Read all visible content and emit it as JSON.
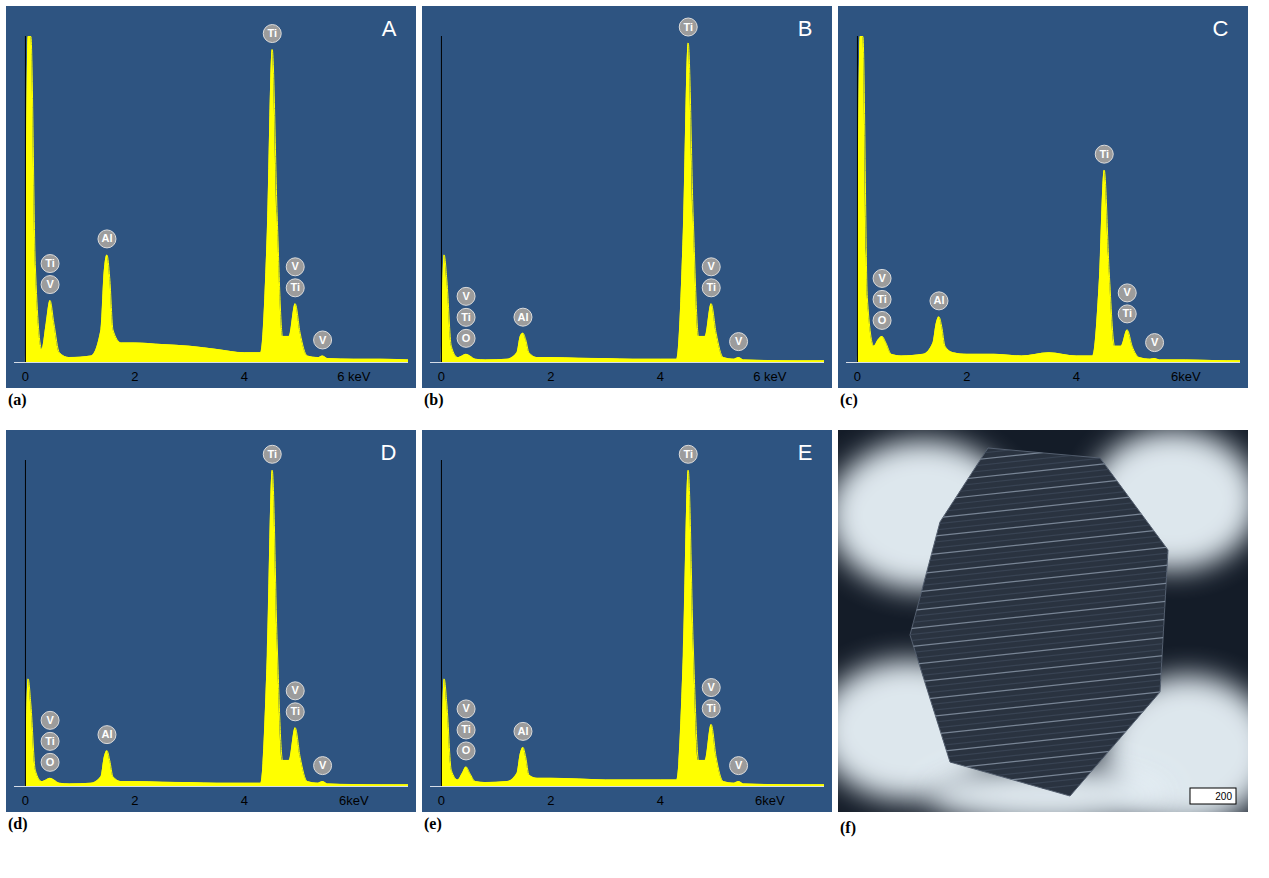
{
  "chart_data": [
    {
      "type": "area",
      "panel_label": "A",
      "caption": "(a)",
      "color": "#ffff00",
      "x": [
        0,
        0.05,
        0.1,
        0.18,
        0.3,
        0.38,
        0.45,
        0.52,
        0.62,
        0.8,
        1.2,
        1.38,
        1.44,
        1.49,
        1.54,
        1.6,
        1.75,
        2,
        2.5,
        3,
        3.5,
        4,
        4.3,
        4.42,
        4.51,
        4.6,
        4.7,
        4.82,
        4.93,
        5.02,
        5.15,
        5.35,
        5.43,
        5.52,
        6,
        6.5,
        7
      ],
      "values": [
        0,
        100,
        100,
        30,
        4,
        12,
        19,
        12,
        3,
        1.5,
        2,
        10,
        28,
        33,
        26,
        10,
        6,
        6,
        5.5,
        5,
        4,
        3,
        3,
        40,
        96,
        45,
        8,
        8,
        18,
        9,
        2,
        1.5,
        2,
        1.2,
        1,
        1,
        0.8
      ],
      "xlim": [
        -0.2,
        7
      ],
      "ylim": [
        0,
        100
      ],
      "xticks": [
        0,
        2,
        4,
        {
          "value": 6,
          "label": "6 keV"
        }
      ],
      "tick_labels": "x",
      "peak_labels": [
        {
          "x": 0.45,
          "labels": [
            "Ti",
            "V"
          ]
        },
        {
          "x": 1.49,
          "labels": [
            "Al"
          ]
        },
        {
          "x": 4.51,
          "labels": [
            "Ti"
          ]
        },
        {
          "x": 4.93,
          "labels": [
            "V",
            "Ti"
          ]
        },
        {
          "x": 5.43,
          "labels": [
            "V"
          ]
        }
      ]
    },
    {
      "type": "area",
      "panel_label": "B",
      "caption": "(b)",
      "color": "#ffff00",
      "x": [
        0,
        0.05,
        0.1,
        0.18,
        0.3,
        0.38,
        0.45,
        0.52,
        0.62,
        0.8,
        1.2,
        1.38,
        1.44,
        1.49,
        1.54,
        1.6,
        1.75,
        2,
        2.5,
        3,
        3.5,
        4,
        4.3,
        4.42,
        4.51,
        4.6,
        4.7,
        4.82,
        4.93,
        5.02,
        5.15,
        5.35,
        5.43,
        5.52,
        6,
        6.5,
        7
      ],
      "values": [
        0,
        33,
        25,
        5,
        1.5,
        2,
        2.5,
        2,
        1,
        0.8,
        1,
        3,
        8,
        9,
        7,
        3,
        1.5,
        1.5,
        1.3,
        1.2,
        1,
        1,
        1,
        40,
        98,
        45,
        8,
        8,
        18,
        9,
        1.5,
        1,
        1.5,
        0.8,
        0.6,
        0.5,
        0.5
      ],
      "xlim": [
        -0.2,
        7
      ],
      "ylim": [
        0,
        100
      ],
      "xticks": [
        0,
        2,
        4,
        {
          "value": 6,
          "label": "6 keV"
        }
      ],
      "tick_labels": "x",
      "peak_labels": [
        {
          "x": 0.45,
          "labels": [
            "V",
            "Ti",
            "O"
          ]
        },
        {
          "x": 1.49,
          "labels": [
            "Al"
          ]
        },
        {
          "x": 4.51,
          "labels": [
            "Ti"
          ]
        },
        {
          "x": 4.93,
          "labels": [
            "V",
            "Ti"
          ]
        },
        {
          "x": 5.43,
          "labels": [
            "V"
          ]
        }
      ]
    },
    {
      "type": "area",
      "panel_label": "C",
      "caption": "(c)",
      "color": "#ffff00",
      "x": [
        0,
        0.05,
        0.1,
        0.18,
        0.3,
        0.38,
        0.45,
        0.52,
        0.62,
        0.8,
        1.2,
        1.38,
        1.44,
        1.49,
        1.54,
        1.6,
        1.75,
        2,
        2.5,
        3,
        3.5,
        4,
        4.3,
        4.42,
        4.51,
        4.6,
        4.7,
        4.82,
        4.93,
        5.02,
        5.15,
        5.35,
        5.43,
        5.52,
        6,
        6.5,
        7
      ],
      "values": [
        0,
        100,
        100,
        20,
        5,
        7,
        8,
        6,
        2.5,
        2,
        2.5,
        6,
        12,
        14,
        11,
        5,
        3,
        2.5,
        2.5,
        2,
        3,
        2,
        2,
        25,
        59,
        28,
        5,
        5,
        10,
        5,
        1.5,
        1,
        1.2,
        0.8,
        0.8,
        0.6,
        0.5
      ],
      "xlim": [
        -0.2,
        7
      ],
      "ylim": [
        0,
        100
      ],
      "xticks": [
        0,
        2,
        4,
        {
          "value": 6,
          "label": "6keV"
        }
      ],
      "tick_labels": "x",
      "peak_labels": [
        {
          "x": 0.45,
          "labels": [
            "V",
            "Ti",
            "O"
          ]
        },
        {
          "x": 1.49,
          "labels": [
            "Al"
          ]
        },
        {
          "x": 4.51,
          "labels": [
            "Ti"
          ]
        },
        {
          "x": 4.93,
          "labels": [
            "V",
            "Ti"
          ]
        },
        {
          "x": 5.43,
          "labels": [
            "V"
          ]
        }
      ]
    },
    {
      "type": "area",
      "panel_label": "D",
      "caption": "(d)",
      "color": "#ffff00",
      "x": [
        0,
        0.05,
        0.1,
        0.18,
        0.3,
        0.38,
        0.45,
        0.52,
        0.62,
        0.8,
        1.2,
        1.38,
        1.44,
        1.49,
        1.54,
        1.6,
        1.75,
        2,
        2.5,
        3,
        3.5,
        4,
        4.3,
        4.42,
        4.51,
        4.6,
        4.7,
        4.82,
        4.93,
        5.02,
        5.15,
        5.35,
        5.43,
        5.52,
        6,
        6.5,
        7
      ],
      "values": [
        0,
        33,
        25,
        5,
        1.5,
        2,
        2.5,
        2,
        1,
        0.8,
        1,
        3,
        9,
        11,
        8,
        3,
        1.5,
        1.5,
        1.3,
        1.2,
        1,
        1,
        1,
        40,
        97,
        44,
        8,
        8,
        18,
        9,
        1.5,
        1,
        1.5,
        0.8,
        0.6,
        0.5,
        0.5
      ],
      "xlim": [
        -0.2,
        7
      ],
      "ylim": [
        0,
        100
      ],
      "xticks": [
        0,
        2,
        4,
        {
          "value": 6,
          "label": "6keV"
        }
      ],
      "tick_labels": "x",
      "peak_labels": [
        {
          "x": 0.45,
          "labels": [
            "V",
            "Ti",
            "O"
          ]
        },
        {
          "x": 1.49,
          "labels": [
            "Al"
          ]
        },
        {
          "x": 4.51,
          "labels": [
            "Ti"
          ]
        },
        {
          "x": 4.93,
          "labels": [
            "V",
            "Ti"
          ]
        },
        {
          "x": 5.43,
          "labels": [
            "V"
          ]
        }
      ]
    },
    {
      "type": "area",
      "panel_label": "E",
      "caption": "(e)",
      "color": "#ffff00",
      "x": [
        0,
        0.05,
        0.1,
        0.18,
        0.3,
        0.38,
        0.45,
        0.52,
        0.62,
        0.8,
        1.2,
        1.38,
        1.44,
        1.49,
        1.54,
        1.6,
        1.75,
        2,
        2.5,
        3,
        3.5,
        4,
        4.3,
        4.42,
        4.51,
        4.6,
        4.7,
        4.82,
        4.93,
        5.02,
        5.15,
        5.35,
        5.43,
        5.52,
        6,
        6.5,
        7
      ],
      "values": [
        0,
        33,
        25,
        5,
        2,
        4,
        6,
        4,
        1.5,
        1.2,
        1.5,
        4,
        10,
        12,
        9,
        3.5,
        2.5,
        2.5,
        2.3,
        2,
        2,
        2,
        2,
        40,
        97,
        44,
        8,
        8,
        19,
        9,
        1.5,
        1,
        1.5,
        0.8,
        0.6,
        0.5,
        0.5
      ],
      "xlim": [
        -0.2,
        7
      ],
      "ylim": [
        0,
        100
      ],
      "xticks": [
        0,
        2,
        4,
        {
          "value": 6,
          "label": "6keV"
        }
      ],
      "tick_labels": "x",
      "peak_labels": [
        {
          "x": 0.45,
          "labels": [
            "V",
            "Ti",
            "O"
          ]
        },
        {
          "x": 1.49,
          "labels": [
            "Al"
          ]
        },
        {
          "x": 4.51,
          "labels": [
            "Ti"
          ]
        },
        {
          "x": 4.93,
          "labels": [
            "V",
            "Ti"
          ]
        },
        {
          "x": 5.43,
          "labels": [
            "V"
          ]
        }
      ]
    }
  ],
  "image_panel": {
    "caption": "(f)",
    "scale_bar_label": "200"
  }
}
